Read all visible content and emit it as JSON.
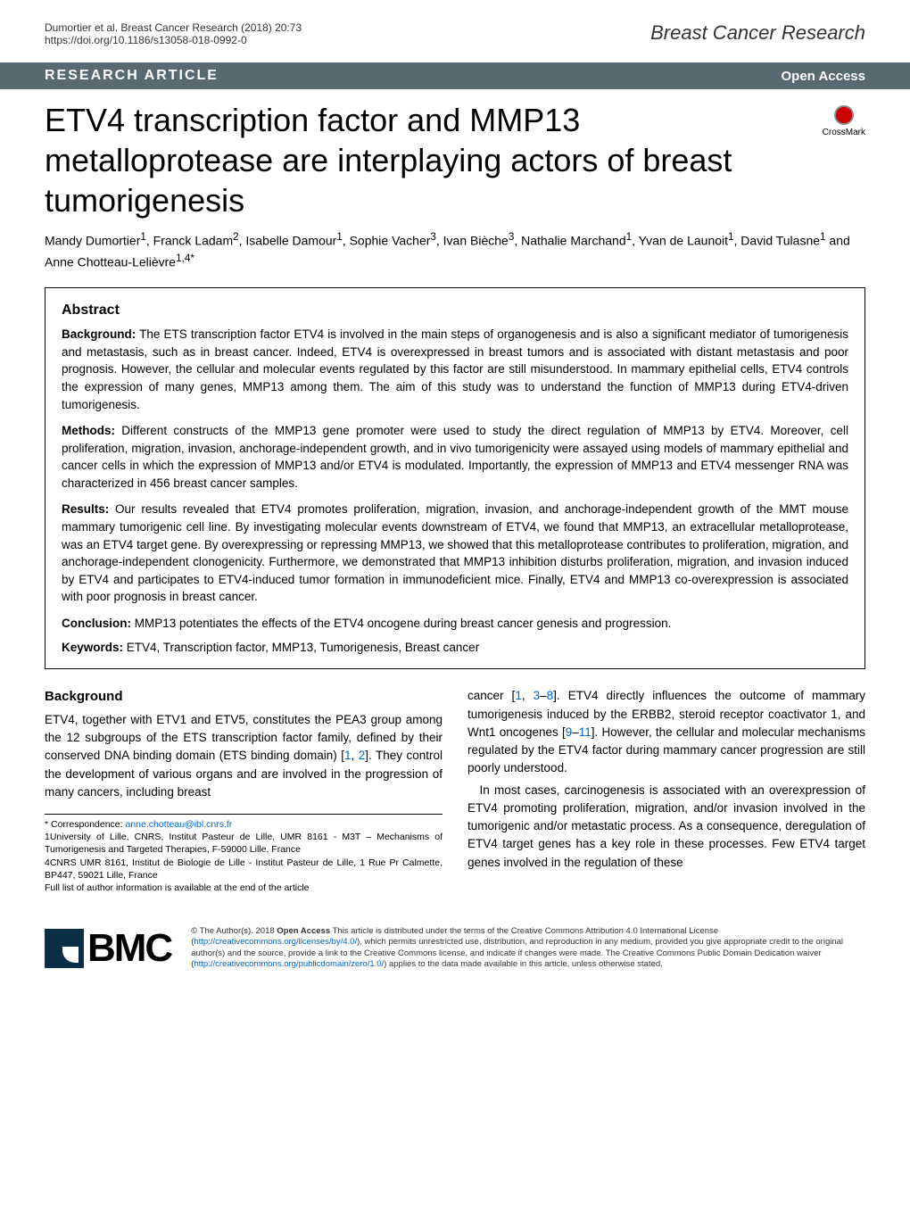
{
  "header": {
    "citation": "Dumortier et al. Breast Cancer Research  (2018) 20:73",
    "doi": "https://doi.org/10.1186/s13058-018-0992-0",
    "journal": "Breast Cancer Research"
  },
  "section_bar": {
    "label": "RESEARCH ARTICLE",
    "access": "Open Access"
  },
  "crossmark": "CrossMark",
  "title": "ETV4 transcription factor and MMP13 metalloprotease are interplaying actors of breast tumorigenesis",
  "authors_html": "Mandy Dumortier<sup>1</sup>, Franck Ladam<sup>2</sup>, Isabelle Damour<sup>1</sup>, Sophie Vacher<sup>3</sup>, Ivan Bièche<sup>3</sup>, Nathalie Marchand<sup>1</sup>, Yvan de Launoit<sup>1</sup>, David Tulasne<sup>1</sup> and Anne Chotteau-Lelièvre<sup>1,4*</sup>",
  "abstract": {
    "heading": "Abstract",
    "background_label": "Background:",
    "background": " The ETS transcription factor ETV4 is involved in the main steps of organogenesis and is also a significant mediator of tumorigenesis and metastasis, such as in breast cancer. Indeed, ETV4 is overexpressed in breast tumors and is associated with distant metastasis and poor prognosis. However, the cellular and molecular events regulated by this factor are still misunderstood. In mammary epithelial cells, ETV4 controls the expression of many genes, MMP13 among them. The aim of this study was to understand the function of MMP13 during ETV4-driven tumorigenesis.",
    "methods_label": "Methods:",
    "methods": " Different constructs of the MMP13 gene promoter were used to study the direct regulation of MMP13 by ETV4. Moreover, cell proliferation, migration, invasion, anchorage-independent growth, and in vivo tumorigenicity were assayed using models of mammary epithelial and cancer cells in which the expression of MMP13 and/or ETV4 is modulated. Importantly, the expression of MMP13 and ETV4 messenger RNA was characterized in 456 breast cancer samples.",
    "results_label": "Results:",
    "results": " Our results revealed that ETV4 promotes proliferation, migration, invasion, and anchorage-independent growth of the MMT mouse mammary tumorigenic cell line. By investigating molecular events downstream of ETV4, we found that MMP13, an extracellular metalloprotease, was an ETV4 target gene. By overexpressing or repressing MMP13, we showed that this metalloprotease contributes to proliferation, migration, and anchorage-independent clonogenicity. Furthermore, we demonstrated that MMP13 inhibition disturbs proliferation, migration, and invasion induced by ETV4 and participates to ETV4-induced tumor formation in immunodeficient mice. Finally, ETV4 and MMP13 co-overexpression is associated with poor prognosis in breast cancer.",
    "conclusion_label": "Conclusion:",
    "conclusion": " MMP13 potentiates the effects of the ETV4 oncogene during breast cancer genesis and progression.",
    "keywords_label": "Keywords:",
    "keywords": " ETV4, Transcription factor, MMP13, Tumorigenesis, Breast cancer"
  },
  "body": {
    "heading": "Background",
    "col1_p1": "ETV4, together with ETV1 and ETV5, constitutes the PEA3 group among the 12 subgroups of the ETS transcription factor family, defined by their conserved DNA binding domain (ETS binding domain) [",
    "col1_ref1": "1",
    "col1_p1b": ", ",
    "col1_ref2": "2",
    "col1_p1c": "]. They control the development of various organs and are involved in the progression of many cancers, including breast",
    "col2_p1a": "cancer [",
    "col2_ref1": "1",
    "col2_p1b": ", ",
    "col2_ref3": "3",
    "col2_p1c": "–",
    "col2_ref8": "8",
    "col2_p1d": "]. ETV4 directly influences the outcome of mammary tumorigenesis induced by the ERBB2, steroid receptor coactivator 1, and Wnt1 oncogenes [",
    "col2_ref9": "9",
    "col2_p1e": "–",
    "col2_ref11": "11",
    "col2_p1f": "]. However, the cellular and molecular mechanisms regulated by the ETV4 factor during mammary cancer progression are still poorly understood.",
    "col2_p2": "In most cases, carcinogenesis is associated with an overexpression of ETV4 promoting proliferation, migration, and/or invasion involved in the tumorigenic and/or metastatic process. As a consequence, deregulation of ETV4 target genes has a key role in these processes. Few ETV4 target genes involved in the regulation of these"
  },
  "footnotes": {
    "corr_label": "* Correspondence: ",
    "corr_email": "anne.chotteau@ibl.cnrs.fr",
    "affil1": "1University of Lille, CNRS, Institut Pasteur de Lille, UMR 8161 - M3T – Mechanisms of Tumorigenesis and Targeted Therapies, F-59000 Lille, France",
    "affil4": "4CNRS UMR 8161, Institut de Biologie de Lille - Institut Pasteur de Lille, 1 Rue Pr Calmette, BP447, 59021 Lille, France",
    "full_list": "Full list of author information is available at the end of the article"
  },
  "footer": {
    "bmc": "BMC",
    "license_pre": "© The Author(s). 2018 ",
    "license_bold": "Open Access",
    "license_text": " This article is distributed under the terms of the Creative Commons Attribution 4.0 International License (",
    "license_url1": "http://creativecommons.org/licenses/by/4.0/",
    "license_text2": "), which permits unrestricted use, distribution, and reproduction in any medium, provided you give appropriate credit to the original author(s) and the source, provide a link to the Creative Commons license, and indicate if changes were made. The Creative Commons Public Domain Dedication waiver (",
    "license_url2": "http://creativecommons.org/publicdomain/zero/1.0/",
    "license_text3": ") applies to the data made available in this article, unless otherwise stated."
  }
}
